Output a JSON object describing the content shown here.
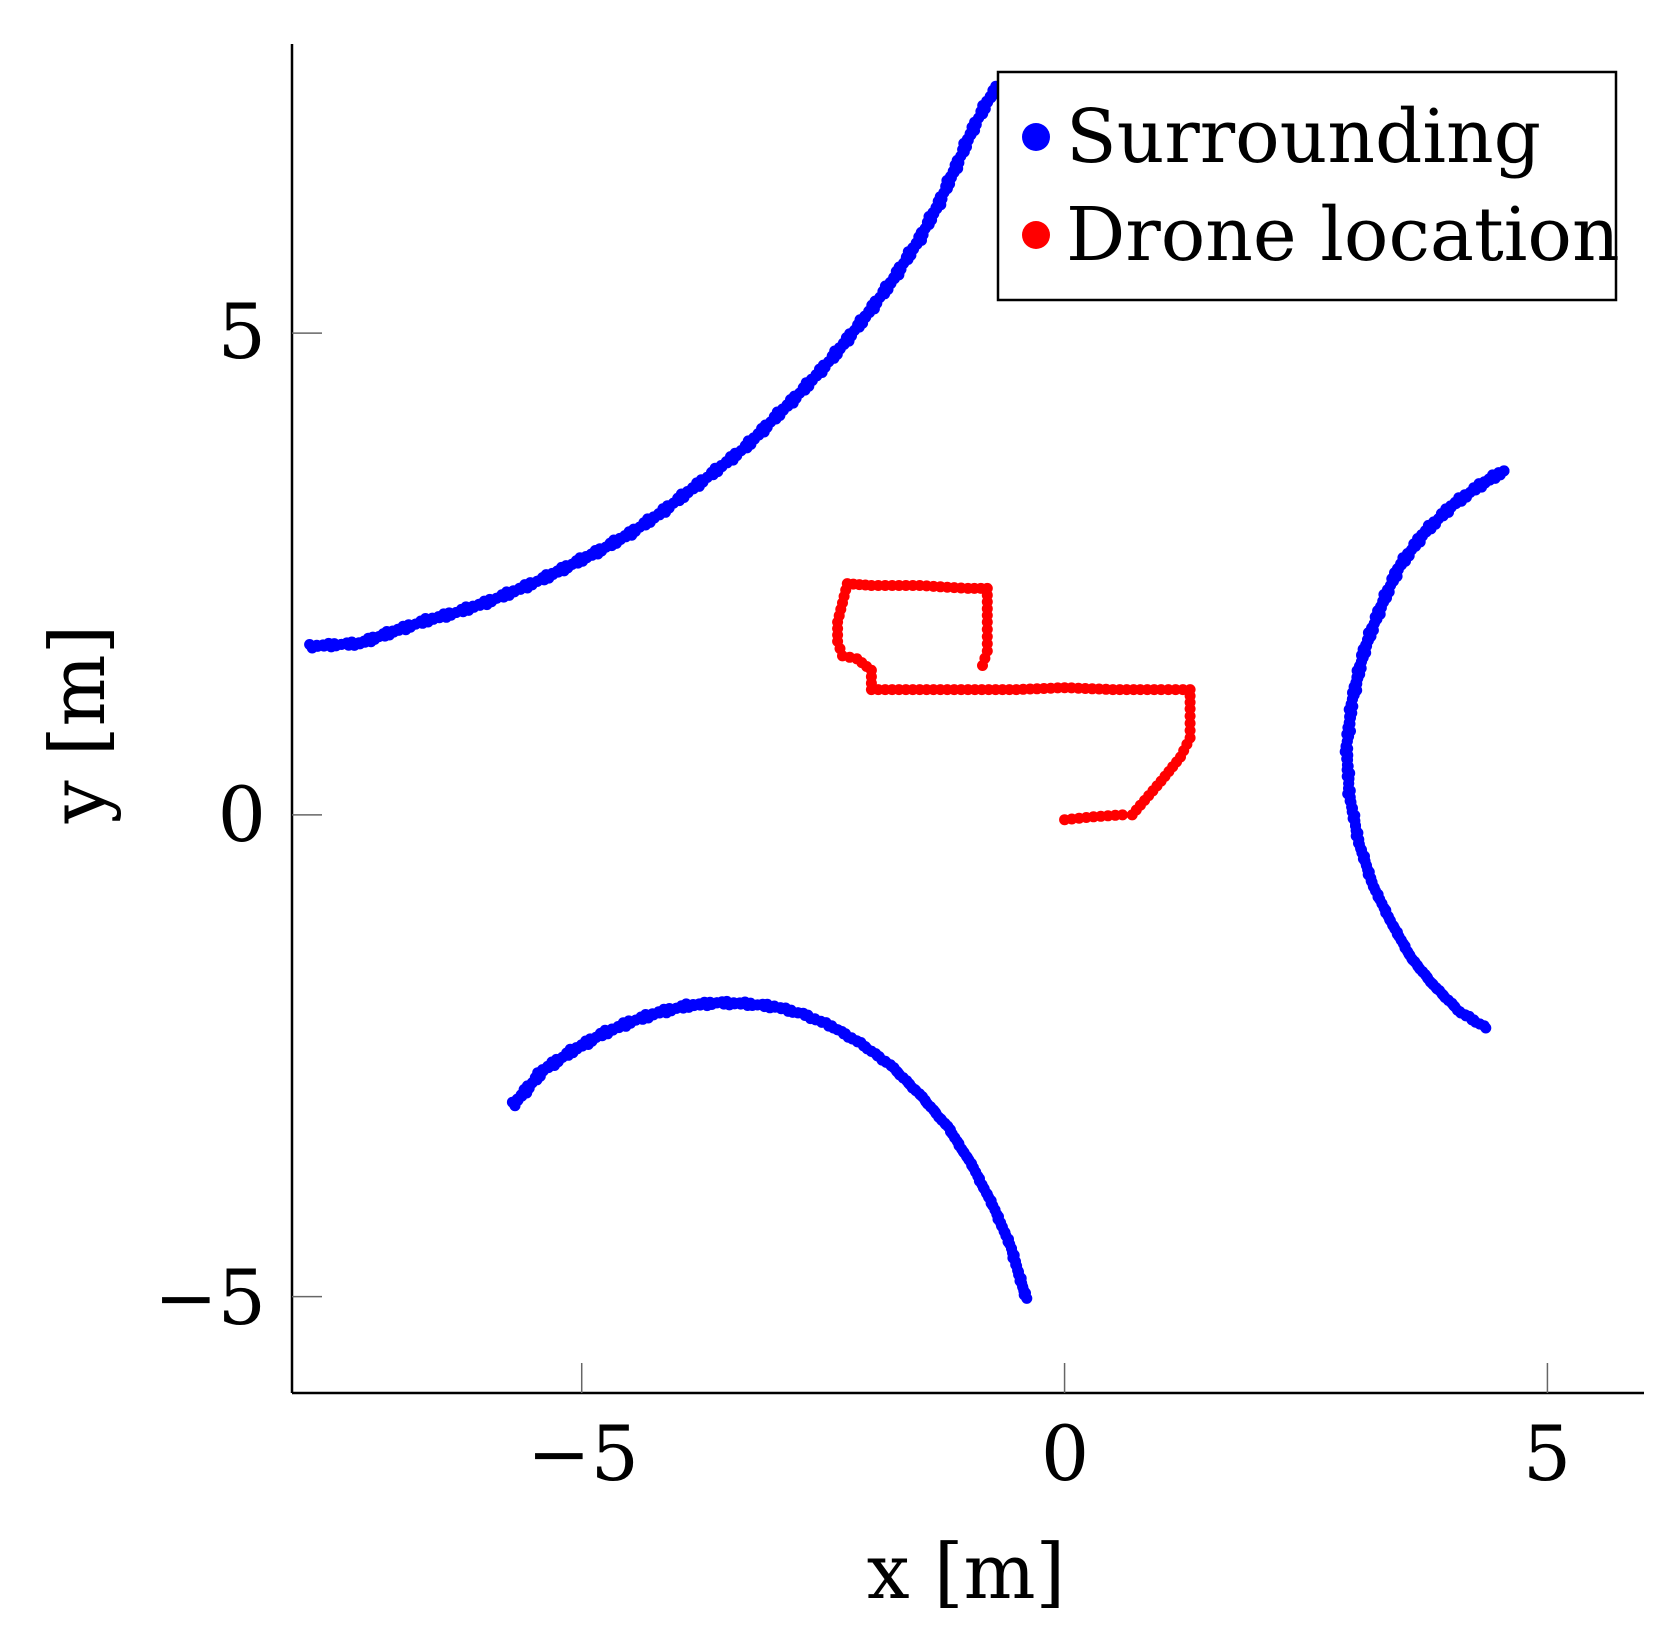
{
  "chart_data": {
    "type": "scatter",
    "title": "",
    "xlabel": "x [m]",
    "ylabel": "y [m]",
    "xlim": [
      -8,
      6
    ],
    "ylim": [
      -6,
      8
    ],
    "x_ticks": [
      -5,
      0,
      5
    ],
    "x_tick_labels": [
      "−5",
      "0",
      "5"
    ],
    "y_ticks": [
      -5,
      0,
      5
    ],
    "y_tick_labels": [
      "−5",
      "0",
      "5"
    ],
    "grid": false,
    "legend_position": "top-right",
    "series": [
      {
        "name": "Surrounding",
        "color": "#0000ff",
        "segments": [
          [
            [
              -7.8,
              1.75
            ],
            [
              -7.3,
              1.78
            ],
            [
              -7.1,
              1.85
            ],
            [
              -6.9,
              1.92
            ],
            [
              -6.6,
              2.02
            ],
            [
              -6.3,
              2.1
            ],
            [
              -6.0,
              2.2
            ],
            [
              -5.7,
              2.32
            ],
            [
              -5.4,
              2.45
            ],
            [
              -5.1,
              2.6
            ],
            [
              -4.8,
              2.75
            ],
            [
              -4.5,
              2.92
            ],
            [
              -4.2,
              3.12
            ],
            [
              -3.9,
              3.35
            ],
            [
              -3.6,
              3.58
            ],
            [
              -3.3,
              3.82
            ],
            [
              -3.0,
              4.12
            ],
            [
              -2.7,
              4.42
            ],
            [
              -2.4,
              4.75
            ],
            [
              -2.1,
              5.12
            ],
            [
              -1.8,
              5.52
            ],
            [
              -1.5,
              5.98
            ],
            [
              -1.3,
              6.35
            ],
            [
              -1.1,
              6.78
            ],
            [
              -0.95,
              7.12
            ],
            [
              -0.8,
              7.4
            ],
            [
              -0.7,
              7.55
            ]
          ],
          [
            [
              4.55,
              3.57
            ],
            [
              4.3,
              3.42
            ],
            [
              4.0,
              3.2
            ],
            [
              3.7,
              2.9
            ],
            [
              3.45,
              2.55
            ],
            [
              3.25,
              2.1
            ],
            [
              3.1,
              1.7
            ],
            [
              2.98,
              1.2
            ],
            [
              2.92,
              0.7
            ],
            [
              2.95,
              0.2
            ],
            [
              3.05,
              -0.3
            ],
            [
              3.2,
              -0.75
            ],
            [
              3.4,
              -1.15
            ],
            [
              3.6,
              -1.5
            ],
            [
              3.85,
              -1.8
            ],
            [
              4.1,
              -2.05
            ],
            [
              4.35,
              -2.2
            ]
          ],
          [
            [
              -5.7,
              -3.0
            ],
            [
              -5.4,
              -2.65
            ],
            [
              -5.1,
              -2.45
            ],
            [
              -4.8,
              -2.28
            ],
            [
              -4.5,
              -2.15
            ],
            [
              -4.2,
              -2.05
            ],
            [
              -3.9,
              -1.98
            ],
            [
              -3.6,
              -1.95
            ],
            [
              -3.3,
              -1.96
            ],
            [
              -3.0,
              -1.99
            ],
            [
              -2.7,
              -2.07
            ],
            [
              -2.4,
              -2.2
            ],
            [
              -2.1,
              -2.38
            ],
            [
              -1.8,
              -2.6
            ],
            [
              -1.5,
              -2.9
            ],
            [
              -1.2,
              -3.25
            ],
            [
              -0.95,
              -3.65
            ],
            [
              -0.72,
              -4.1
            ],
            [
              -0.55,
              -4.5
            ],
            [
              -0.45,
              -4.85
            ],
            [
              -0.4,
              -5.0
            ]
          ]
        ]
      },
      {
        "name": "Drone location",
        "color": "#ff0000",
        "values": [
          [
            0.0,
            -0.05
          ],
          [
            0.3,
            -0.02
          ],
          [
            0.6,
            0.0
          ],
          [
            0.7,
            0.0
          ],
          [
            1.0,
            0.35
          ],
          [
            1.2,
            0.6
          ],
          [
            1.3,
            0.8
          ],
          [
            1.3,
            1.1
          ],
          [
            1.3,
            1.3
          ],
          [
            1.0,
            1.3
          ],
          [
            0.5,
            1.3
          ],
          [
            0.0,
            1.32
          ],
          [
            -0.5,
            1.3
          ],
          [
            -1.0,
            1.3
          ],
          [
            -1.5,
            1.3
          ],
          [
            -2.0,
            1.3
          ],
          [
            -2.0,
            1.5
          ],
          [
            -2.15,
            1.62
          ],
          [
            -2.3,
            1.65
          ],
          [
            -2.35,
            1.8
          ],
          [
            -2.35,
            2.0
          ],
          [
            -2.3,
            2.2
          ],
          [
            -2.25,
            2.4
          ],
          [
            -2.0,
            2.38
          ],
          [
            -1.5,
            2.38
          ],
          [
            -1.0,
            2.35
          ],
          [
            -0.8,
            2.35
          ],
          [
            -0.8,
            2.0
          ],
          [
            -0.8,
            1.7
          ],
          [
            -0.85,
            1.55
          ]
        ]
      }
    ]
  }
}
